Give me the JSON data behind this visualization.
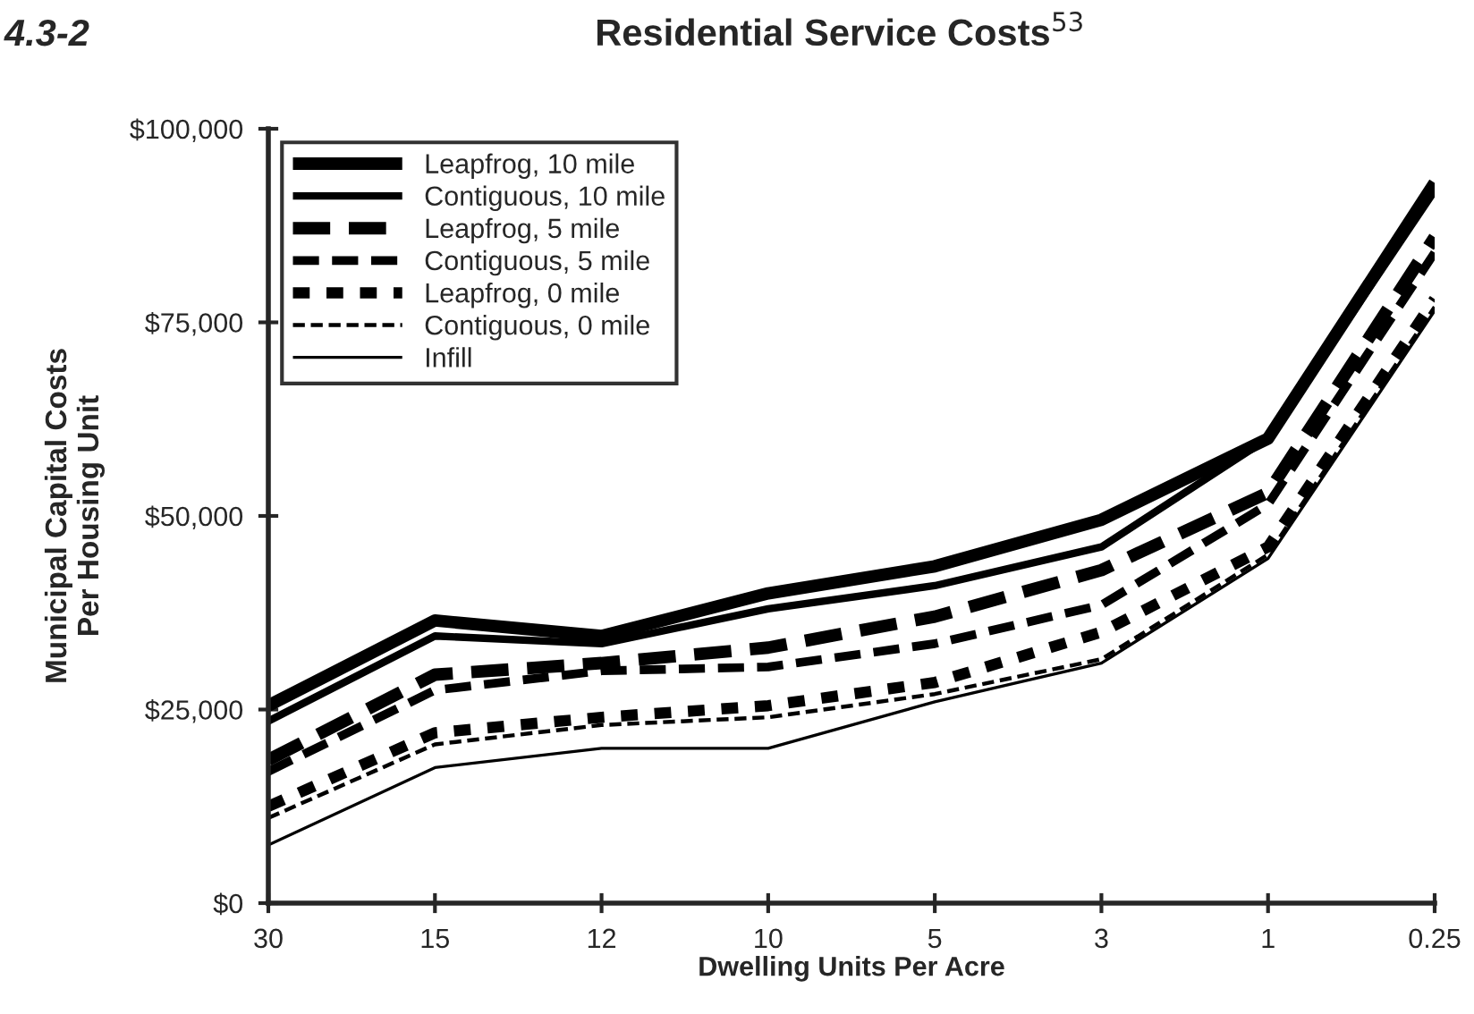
{
  "chart_data": {
    "type": "line",
    "title": "Residential Service Costs$^{53}$",
    "xlabel": "Dwelling Units Per Acre",
    "ylabel": "Municipal Capital Costs\nPer Housing Unit",
    "annotations": [
      "4.3-2"
    ],
    "categories": [
      "30",
      "15",
      "12",
      "10",
      "5",
      "3",
      "1",
      "0.25"
    ],
    "series": [
      {
        "name": "Leapfrog, 10 mile",
        "color": "#000000",
        "line_style": "solid",
        "values": [
          25500,
          36500,
          34500,
          40000,
          43500,
          49500,
          60000,
          93000
        ]
      },
      {
        "name": "Contiguous, 10 mile",
        "color": "#000000",
        "line_style": "solid",
        "values": [
          23500,
          34500,
          33500,
          38000,
          41000,
          46000,
          60000,
          92000
        ]
      },
      {
        "name": "Leapfrog, 5 mile",
        "color": "#000000",
        "line_style": "dashed",
        "values": [
          18500,
          29500,
          31000,
          33000,
          37000,
          43000,
          53000,
          86000
        ]
      },
      {
        "name": "Contiguous, 5 mile",
        "color": "#000000",
        "line_style": "dashed",
        "values": [
          17000,
          27500,
          30000,
          30500,
          33500,
          38500,
          51500,
          84000
        ]
      },
      {
        "name": "Leapfrog, 0 mile",
        "color": "#000000",
        "line_style": "dotted",
        "values": [
          12500,
          22000,
          24000,
          25500,
          28500,
          35000,
          46000,
          78000
        ]
      },
      {
        "name": "Contiguous, 0 mile",
        "color": "#000000",
        "line_style": "dashed",
        "values": [
          11000,
          20500,
          23000,
          24000,
          27000,
          31500,
          45000,
          77000
        ]
      },
      {
        "name": "Infill",
        "color": "#000000",
        "line_style": "solid",
        "values": [
          7500,
          17500,
          20000,
          20000,
          26000,
          31000,
          44500,
          76500
        ]
      }
    ],
    "ylim": [
      0,
      100000
    ],
    "yticks": [
      {
        "value": 0,
        "label": "$0"
      },
      {
        "value": 25000,
        "label": "$25,000"
      },
      {
        "value": 50000,
        "label": "$50,000"
      },
      {
        "value": 75000,
        "label": "$75,000"
      },
      {
        "value": 100000,
        "label": "$100,000"
      }
    ],
    "grid": false,
    "legend": "top left",
    "marker": "none"
  }
}
